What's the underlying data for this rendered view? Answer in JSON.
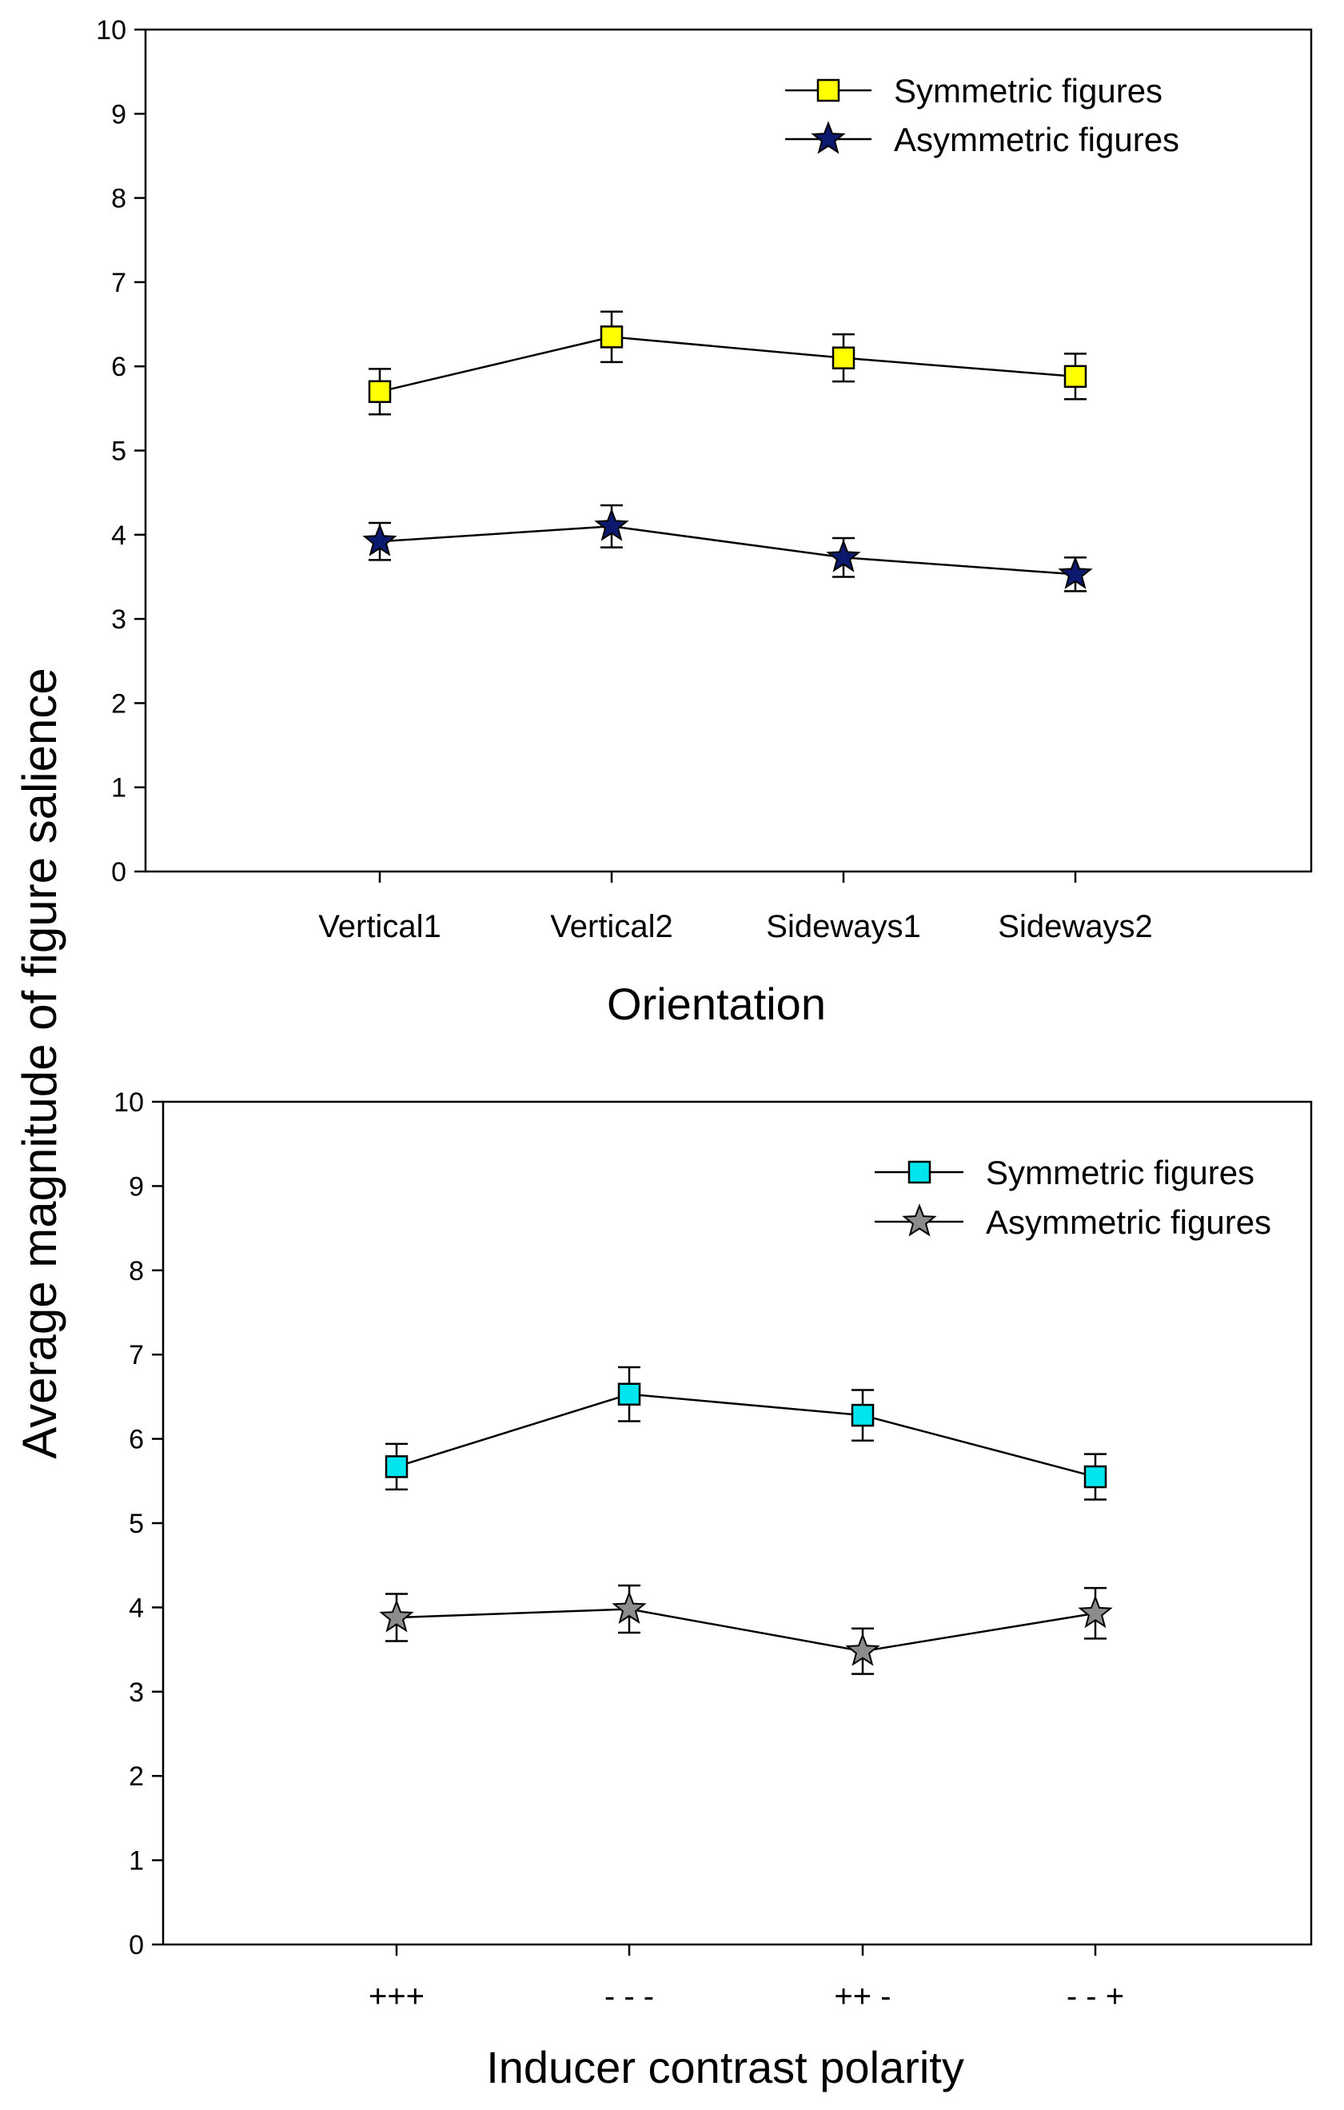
{
  "ylabel": "Average magnitude of figure salience",
  "chart_data": [
    {
      "type": "line",
      "title": "",
      "xlabel": "Orientation",
      "ylabel": "Average magnitude of figure salience",
      "ylim": [
        0,
        10
      ],
      "yticks": [
        "0",
        "1",
        "2",
        "3",
        "4",
        "5",
        "6",
        "7",
        "8",
        "9",
        "10"
      ],
      "categories": [
        "Vertical1",
        "Vertical2",
        "Sideways1",
        "Sideways2"
      ],
      "legend_position": "top-right",
      "series": [
        {
          "name": "Symmetric figures",
          "marker": "square",
          "color": "#ffff00",
          "values": [
            5.7,
            6.35,
            6.1,
            5.88
          ],
          "errors": [
            0.27,
            0.3,
            0.28,
            0.27
          ]
        },
        {
          "name": "Asymmetric figures",
          "marker": "star",
          "color": "#0b1a6e",
          "values": [
            3.92,
            4.1,
            3.73,
            3.53
          ],
          "errors": [
            0.22,
            0.25,
            0.23,
            0.2
          ]
        }
      ]
    },
    {
      "type": "line",
      "title": "",
      "xlabel": "Inducer contrast polarity",
      "ylabel": "Average magnitude of figure salience",
      "ylim": [
        0,
        10
      ],
      "yticks": [
        "0",
        "1",
        "2",
        "3",
        "4",
        "5",
        "6",
        "7",
        "8",
        "9",
        "10"
      ],
      "categories": [
        "+++",
        "- - -",
        "++ -",
        "- - +"
      ],
      "legend_position": "top-right",
      "series": [
        {
          "name": "Symmetric figures",
          "marker": "square",
          "color": "#00e5ee",
          "values": [
            5.67,
            6.53,
            6.28,
            5.55
          ],
          "errors": [
            0.27,
            0.32,
            0.3,
            0.27
          ]
        },
        {
          "name": "Asymmetric figures",
          "marker": "star",
          "color": "#8c8c8c",
          "values": [
            3.88,
            3.98,
            3.48,
            3.93
          ],
          "errors": [
            0.28,
            0.28,
            0.27,
            0.3
          ]
        }
      ]
    }
  ]
}
